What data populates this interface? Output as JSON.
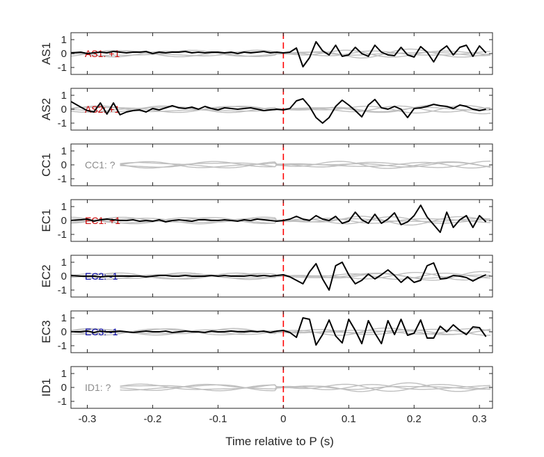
{
  "chart_data": {
    "type": "line",
    "xlabel": "Time relative to P (s)",
    "xlim": [
      -0.325,
      0.32
    ],
    "ylim": [
      -1.5,
      1.5
    ],
    "xticks": [
      -0.3,
      -0.2,
      -0.1,
      0,
      0.1,
      0.2,
      0.3
    ],
    "xtick_labels": [
      "-0.3",
      "-0.2",
      "-0.1",
      "0",
      "0.1",
      "0.2",
      "0.3"
    ],
    "yticks": [
      -1,
      0,
      1
    ],
    "ytick_labels": [
      "-1",
      "0",
      "1"
    ],
    "p_arrival_x": 0,
    "colors": {
      "trace": "#000000",
      "background_traces": "#bfbfbf",
      "arrival_line": "#ff0000",
      "positive_label": "#cc0000",
      "negative_label": "#0000aa",
      "unknown_label": "#8c8c8c"
    },
    "panels": [
      {
        "station": "AS1",
        "annotation": "AS1: +1",
        "annotation_color": "#cc0000",
        "trace": {
          "x": [
            -0.325,
            -0.31,
            -0.3,
            -0.29,
            -0.28,
            -0.27,
            -0.26,
            -0.25,
            -0.24,
            -0.23,
            -0.22,
            -0.21,
            -0.2,
            -0.19,
            -0.18,
            -0.17,
            -0.16,
            -0.15,
            -0.14,
            -0.13,
            -0.12,
            -0.11,
            -0.1,
            -0.09,
            -0.08,
            -0.07,
            -0.06,
            -0.05,
            -0.04,
            -0.03,
            -0.02,
            -0.01,
            0,
            0.01,
            0.02,
            0.03,
            0.04,
            0.05,
            0.06,
            0.07,
            0.08,
            0.09,
            0.1,
            0.11,
            0.12,
            0.13,
            0.14,
            0.15,
            0.16,
            0.17,
            0.18,
            0.19,
            0.2,
            0.21,
            0.22,
            0.23,
            0.24,
            0.25,
            0.26,
            0.27,
            0.28,
            0.29,
            0.3,
            0.31
          ],
          "y": [
            0.05,
            0.1,
            0.0,
            0.05,
            0.1,
            0.05,
            0.15,
            0.1,
            0.05,
            0.1,
            0.1,
            0.15,
            0.0,
            0.1,
            0.05,
            0.1,
            0.1,
            0.15,
            0.05,
            0.1,
            0.05,
            0.1,
            0.1,
            0.05,
            0.1,
            0.0,
            0.1,
            0.05,
            0.1,
            0.15,
            0.05,
            0.1,
            0.05,
            0.1,
            0.4,
            -0.95,
            -0.3,
            0.85,
            0.2,
            -0.1,
            0.6,
            -0.2,
            -0.1,
            0.45,
            0.0,
            -0.2,
            0.6,
            0.1,
            -0.1,
            -0.15,
            0.45,
            -0.1,
            -0.25,
            0.5,
            0.1,
            -0.6,
            0.2,
            0.55,
            -0.1,
            0.45,
            0.6,
            -0.2,
            0.55,
            0.05
          ]
        }
      },
      {
        "station": "AS2",
        "annotation": "AS2: +1",
        "annotation_color": "#cc0000",
        "trace": {
          "x": [
            -0.325,
            -0.31,
            -0.3,
            -0.29,
            -0.28,
            -0.27,
            -0.26,
            -0.25,
            -0.24,
            -0.23,
            -0.22,
            -0.21,
            -0.2,
            -0.19,
            -0.18,
            -0.17,
            -0.16,
            -0.15,
            -0.14,
            -0.13,
            -0.12,
            -0.11,
            -0.1,
            -0.09,
            -0.08,
            -0.07,
            -0.06,
            -0.05,
            -0.04,
            -0.03,
            -0.02,
            -0.01,
            0,
            0.01,
            0.02,
            0.03,
            0.04,
            0.05,
            0.06,
            0.07,
            0.08,
            0.09,
            0.1,
            0.11,
            0.12,
            0.13,
            0.14,
            0.15,
            0.16,
            0.17,
            0.18,
            0.19,
            0.2,
            0.21,
            0.22,
            0.23,
            0.24,
            0.25,
            0.26,
            0.27,
            0.28,
            0.29,
            0.3,
            0.31
          ],
          "y": [
            0.55,
            0.15,
            -0.1,
            -0.2,
            0.45,
            -0.35,
            0.45,
            -0.4,
            -0.2,
            -0.1,
            -0.05,
            -0.2,
            0.05,
            -0.05,
            0.1,
            0.25,
            0.1,
            0.05,
            0.15,
            0.0,
            0.2,
            0.05,
            -0.05,
            0.1,
            0.05,
            0.0,
            0.05,
            0.1,
            0.0,
            -0.1,
            -0.05,
            0.0,
            -0.05,
            0.05,
            0.6,
            0.75,
            0.2,
            -0.6,
            -1.0,
            -0.6,
            0.2,
            0.65,
            0.3,
            -0.1,
            -0.55,
            0.3,
            0.7,
            0.1,
            0.0,
            0.2,
            0.0,
            -0.6,
            0.05,
            0.1,
            0.2,
            0.35,
            0.25,
            0.2,
            0.05,
            0.3,
            0.2,
            0.0,
            -0.1,
            0.0
          ]
        }
      },
      {
        "station": "CC1",
        "annotation": "CC1: ?",
        "annotation_color": "#8c8c8c",
        "trace": null
      },
      {
        "station": "EC1",
        "annotation": "EC1: +1",
        "annotation_color": "#cc0000",
        "trace": {
          "x": [
            -0.325,
            -0.31,
            -0.3,
            -0.29,
            -0.28,
            -0.27,
            -0.26,
            -0.25,
            -0.24,
            -0.23,
            -0.22,
            -0.21,
            -0.2,
            -0.19,
            -0.18,
            -0.17,
            -0.16,
            -0.15,
            -0.14,
            -0.13,
            -0.12,
            -0.11,
            -0.1,
            -0.09,
            -0.08,
            -0.07,
            -0.06,
            -0.05,
            -0.04,
            -0.03,
            -0.02,
            -0.01,
            0,
            0.01,
            0.02,
            0.03,
            0.04,
            0.05,
            0.06,
            0.07,
            0.08,
            0.09,
            0.1,
            0.11,
            0.12,
            0.13,
            0.14,
            0.15,
            0.16,
            0.17,
            0.18,
            0.19,
            0.2,
            0.21,
            0.22,
            0.23,
            0.24,
            0.25,
            0.26,
            0.27,
            0.28,
            0.29,
            0.3,
            0.31
          ],
          "y": [
            0.0,
            0.05,
            0.1,
            -0.05,
            0.05,
            0.1,
            0.05,
            0.0,
            0.0,
            0.05,
            -0.05,
            0.0,
            -0.05,
            0.05,
            -0.1,
            0.0,
            0.05,
            0.0,
            -0.05,
            0.05,
            0.05,
            0.0,
            0.0,
            0.05,
            0.0,
            -0.05,
            0.05,
            0.0,
            0.1,
            0.05,
            0.0,
            -0.05,
            0.0,
            0.1,
            0.3,
            0.1,
            0.0,
            0.35,
            0.1,
            0.0,
            0.3,
            -0.2,
            -0.05,
            0.6,
            0.05,
            -0.2,
            0.45,
            -0.2,
            0.1,
            0.55,
            -0.3,
            -0.1,
            0.35,
            1.1,
            0.25,
            -0.3,
            -0.85,
            0.6,
            -0.5,
            0.05,
            0.35,
            -0.5,
            0.35,
            -0.1
          ]
        }
      },
      {
        "station": "EC2",
        "annotation": "EC2: -1",
        "annotation_color": "#0000aa",
        "trace": {
          "x": [
            -0.325,
            -0.31,
            -0.3,
            -0.29,
            -0.28,
            -0.27,
            -0.26,
            -0.25,
            -0.24,
            -0.23,
            -0.22,
            -0.21,
            -0.2,
            -0.19,
            -0.18,
            -0.17,
            -0.16,
            -0.15,
            -0.14,
            -0.13,
            -0.12,
            -0.11,
            -0.1,
            -0.09,
            -0.08,
            -0.07,
            -0.06,
            -0.05,
            -0.04,
            -0.03,
            -0.02,
            -0.01,
            0,
            0.01,
            0.02,
            0.03,
            0.04,
            0.05,
            0.06,
            0.07,
            0.08,
            0.09,
            0.1,
            0.11,
            0.12,
            0.13,
            0.14,
            0.15,
            0.16,
            0.17,
            0.18,
            0.19,
            0.2,
            0.21,
            0.22,
            0.23,
            0.24,
            0.25,
            0.26,
            0.27,
            0.28,
            0.29,
            0.3,
            0.31
          ],
          "y": [
            0.05,
            0.0,
            0.0,
            0.0,
            -0.05,
            0.0,
            0.0,
            0.0,
            0.0,
            0.0,
            0.0,
            -0.05,
            0.0,
            0.05,
            0.05,
            0.0,
            0.0,
            0.05,
            0.0,
            0.0,
            0.0,
            0.05,
            0.0,
            0.05,
            0.0,
            0.0,
            0.0,
            0.05,
            0.0,
            0.05,
            0.0,
            0.05,
            0.1,
            -0.05,
            -0.3,
            -0.55,
            0.3,
            0.9,
            -0.2,
            -1.0,
            0.75,
            1.0,
            0.1,
            -0.55,
            -0.3,
            0.15,
            -0.2,
            0.1,
            0.45,
            0.05,
            -0.45,
            -0.05,
            -0.45,
            -0.3,
            0.75,
            0.95,
            -0.2,
            -0.15,
            0.05,
            0.0,
            -0.1,
            -0.35,
            -0.1,
            0.1
          ]
        }
      },
      {
        "station": "EC3",
        "annotation": "EC3: -1",
        "annotation_color": "#0000aa",
        "trace": {
          "x": [
            -0.325,
            -0.31,
            -0.3,
            -0.29,
            -0.28,
            -0.27,
            -0.26,
            -0.25,
            -0.24,
            -0.23,
            -0.22,
            -0.21,
            -0.2,
            -0.19,
            -0.18,
            -0.17,
            -0.16,
            -0.15,
            -0.14,
            -0.13,
            -0.12,
            -0.11,
            -0.1,
            -0.09,
            -0.08,
            -0.07,
            -0.06,
            -0.05,
            -0.04,
            -0.03,
            -0.02,
            -0.01,
            0,
            0.01,
            0.02,
            0.03,
            0.04,
            0.05,
            0.06,
            0.07,
            0.08,
            0.09,
            0.1,
            0.11,
            0.12,
            0.13,
            0.14,
            0.15,
            0.16,
            0.17,
            0.18,
            0.19,
            0.2,
            0.21,
            0.22,
            0.23,
            0.24,
            0.25,
            0.26,
            0.27,
            0.28,
            0.29,
            0.3,
            0.31
          ],
          "y": [
            0.0,
            0.0,
            0.05,
            -0.05,
            0.05,
            0.0,
            0.0,
            0.05,
            0.0,
            -0.05,
            0.0,
            0.05,
            0.0,
            0.0,
            0.05,
            -0.05,
            0.0,
            0.05,
            0.0,
            0.0,
            -0.05,
            0.05,
            0.0,
            0.0,
            0.05,
            0.0,
            0.0,
            0.05,
            0.0,
            0.05,
            -0.05,
            0.05,
            0.1,
            -0.05,
            -0.4,
            1.0,
            0.9,
            -0.95,
            -0.2,
            0.85,
            -0.3,
            -0.8,
            0.9,
            0.1,
            -0.85,
            0.8,
            -0.1,
            -0.85,
            0.8,
            -0.2,
            0.9,
            -0.25,
            -0.1,
            0.85,
            -0.45,
            -0.45,
            0.4,
            0.0,
            0.5,
            0.1,
            -0.2,
            0.35,
            0.3,
            -0.35
          ]
        }
      },
      {
        "station": "ID1",
        "annotation": "ID1: ?",
        "annotation_color": "#8c8c8c",
        "trace": null
      }
    ]
  }
}
